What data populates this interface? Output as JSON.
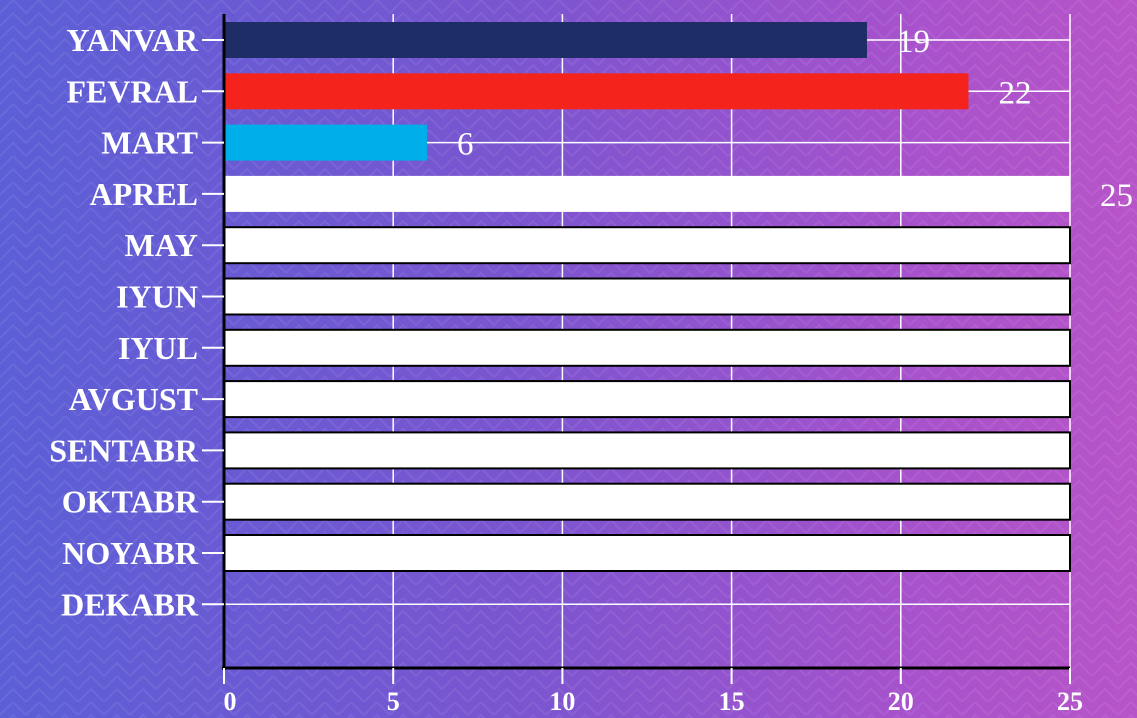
{
  "chart_data": {
    "type": "bar",
    "orientation": "horizontal",
    "categories": [
      "YANVAR",
      "FEVRAL",
      "MART",
      "APREL",
      "MAY",
      "IYUN",
      "IYUL",
      "AVGUST",
      "SENTABR",
      "OKTABR",
      "NOYABR",
      "DEKABR"
    ],
    "values": [
      19,
      22,
      6,
      25,
      25,
      25,
      25,
      25,
      25,
      25,
      25,
      null
    ],
    "data_labels": [
      "19",
      "22",
      "6",
      "25",
      "",
      "",
      "",
      "",
      "",
      "",
      "",
      ""
    ],
    "bar_colors": [
      "#1f2d66",
      "#f4241c",
      "#00aeea",
      "#ffffff",
      "#ffffff",
      "#ffffff",
      "#ffffff",
      "#ffffff",
      "#ffffff",
      "#ffffff",
      "#ffffff",
      "#ffffff"
    ],
    "bar_outlined": [
      false,
      false,
      false,
      false,
      true,
      true,
      true,
      true,
      true,
      true,
      true,
      true
    ],
    "xticks": [
      "0",
      "5",
      "10",
      "15",
      "20",
      "25"
    ],
    "xlim": [
      0,
      25
    ],
    "grid": true,
    "title": "",
    "xlabel": "",
    "ylabel": ""
  }
}
